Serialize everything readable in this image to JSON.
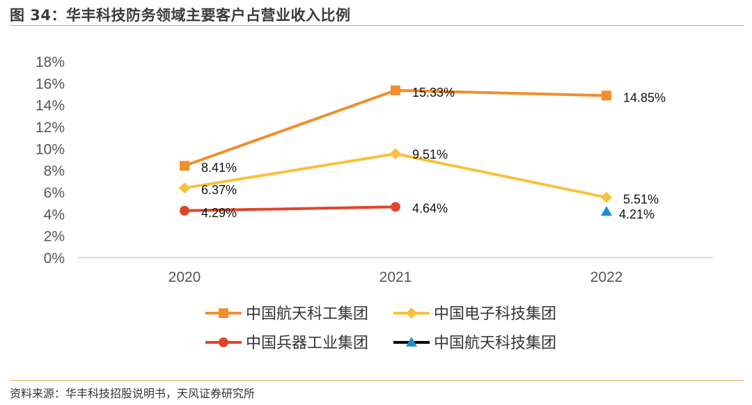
{
  "header": {
    "title": "图 34：华丰科技防务领域主要客户占营业收入比例"
  },
  "footer": {
    "source": "资料来源：华丰科技招股说明书，天风证券研究所"
  },
  "chart_data": {
    "type": "line",
    "title": "图 34：华丰科技防务领域主要客户占营业收入比例",
    "categories": [
      "2020",
      "2021",
      "2022"
    ],
    "yticks": [
      "0%",
      "2%",
      "4%",
      "6%",
      "8%",
      "10%",
      "12%",
      "14%",
      "16%",
      "18%"
    ],
    "ylim": [
      0,
      18
    ],
    "grid": false,
    "legend_position": "bottom",
    "series": [
      {
        "name": "中国航天科工集团",
        "marker": "square",
        "color": "#f28e2b",
        "values": [
          8.41,
          15.33,
          14.85
        ],
        "labels": [
          "8.41%",
          "15.33%",
          "14.85%"
        ]
      },
      {
        "name": "中国电子科技集团",
        "marker": "diamond",
        "color": "#f9c03a",
        "values": [
          6.37,
          9.51,
          5.51
        ],
        "labels": [
          "6.37%",
          "9.51%",
          "5.51%"
        ]
      },
      {
        "name": "中国兵器工业集团",
        "marker": "circle",
        "color": "#e0452a",
        "values": [
          4.29,
          4.64,
          null
        ],
        "labels": [
          "4.29%",
          "4.64%",
          ""
        ]
      },
      {
        "name": "中国航天科技集团",
        "marker": "triangle",
        "color": "#1f8fd4",
        "line_color": "#000000",
        "values": [
          null,
          null,
          4.21
        ],
        "labels": [
          "",
          "",
          "4.21%"
        ]
      }
    ]
  }
}
